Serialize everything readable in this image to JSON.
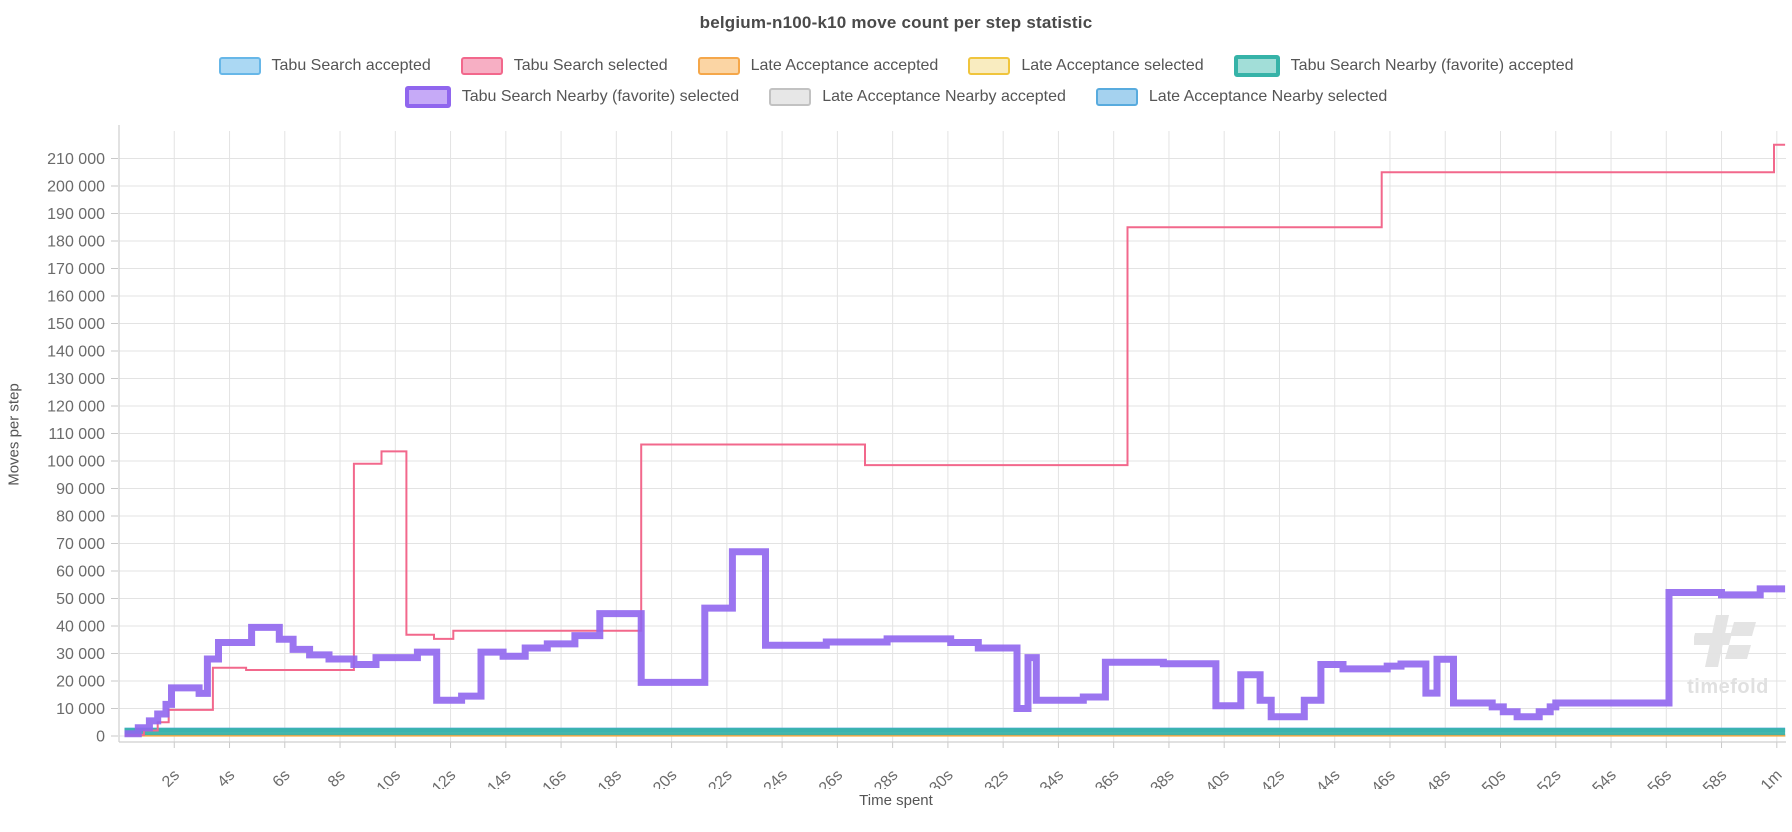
{
  "title": "belgium-n100-k10 move count per step statistic",
  "watermark_text": "timefold",
  "legend_rows": [
    [
      {
        "label": "Tabu Search accepted",
        "border": "#67b7e8",
        "fill": "#abd8f3",
        "thick": false
      },
      {
        "label": "Tabu Search selected",
        "border": "#f2688c",
        "fill": "#f7afc4",
        "thick": false
      },
      {
        "label": "Late Acceptance accepted",
        "border": "#f5a74a",
        "fill": "#fbd5a4",
        "thick": false
      },
      {
        "label": "Late Acceptance selected",
        "border": "#f0c53d",
        "fill": "#f9ecc0",
        "thick": false
      },
      {
        "label": "Tabu Search Nearby (favorite) accepted",
        "border": "#36b3a8",
        "fill": "#a2ded8",
        "thick": true
      }
    ],
    [
      {
        "label": "Tabu Search Nearby (favorite) selected",
        "border": "#9066ee",
        "fill": "#c6aaf7",
        "thick": true
      },
      {
        "label": "Late Acceptance Nearby accepted",
        "border": "#c2c2c2",
        "fill": "#e7e7e7",
        "thick": false
      },
      {
        "label": "Late Acceptance Nearby selected",
        "border": "#58abde",
        "fill": "#a5d2ef",
        "thick": false
      }
    ]
  ],
  "chart_data": {
    "type": "line",
    "style": "step-after",
    "title": "belgium-n100-k10 move count per step statistic",
    "xlabel": "Time spent",
    "ylabel": "Moves per step",
    "ylim": [
      0,
      220000
    ],
    "xlim_seconds": [
      0,
      60.3
    ],
    "y_tick_step": 10000,
    "grid": true,
    "legend_position": "top",
    "y_ticks": [
      "0",
      "10 000",
      "20 000",
      "30 000",
      "40 000",
      "50 000",
      "60 000",
      "70 000",
      "80 000",
      "90 000",
      "100 000",
      "110 000",
      "120 000",
      "130 000",
      "140 000",
      "150 000",
      "160 000",
      "170 000",
      "180 000",
      "190 000",
      "200 000",
      "210 000"
    ],
    "x_ticks": [
      {
        "t": 2,
        "label": "2s"
      },
      {
        "t": 4,
        "label": "4s"
      },
      {
        "t": 6,
        "label": "6s"
      },
      {
        "t": 8,
        "label": "8s"
      },
      {
        "t": 10,
        "label": "10s"
      },
      {
        "t": 12,
        "label": "12s"
      },
      {
        "t": 14,
        "label": "14s"
      },
      {
        "t": 16,
        "label": "16s"
      },
      {
        "t": 18,
        "label": "18s"
      },
      {
        "t": 20,
        "label": "20s"
      },
      {
        "t": 22,
        "label": "22s"
      },
      {
        "t": 24,
        "label": "24s"
      },
      {
        "t": 26,
        "label": "26s"
      },
      {
        "t": 28,
        "label": "28s"
      },
      {
        "t": 30,
        "label": "30s"
      },
      {
        "t": 32,
        "label": "32s"
      },
      {
        "t": 34,
        "label": "34s"
      },
      {
        "t": 36,
        "label": "36s"
      },
      {
        "t": 38,
        "label": "38s"
      },
      {
        "t": 40,
        "label": "40s"
      },
      {
        "t": 42,
        "label": "42s"
      },
      {
        "t": 44,
        "label": "44s"
      },
      {
        "t": 46,
        "label": "46s"
      },
      {
        "t": 48,
        "label": "48s"
      },
      {
        "t": 50,
        "label": "50s"
      },
      {
        "t": 52,
        "label": "52s"
      },
      {
        "t": 54,
        "label": "54s"
      },
      {
        "t": 56,
        "label": "56s"
      },
      {
        "t": 58,
        "label": "58s"
      },
      {
        "t": 60,
        "label": "1m"
      }
    ],
    "series": [
      {
        "id": "late-acceptance-nearby-accepted",
        "name": "Late Acceptance Nearby accepted",
        "color": "#c9c9c9",
        "width": 2,
        "opacity": 1,
        "points": [
          [
            0.2,
            600
          ],
          [
            60.2,
            600
          ]
        ]
      },
      {
        "id": "late-acceptance-selected",
        "name": "Late Acceptance selected",
        "color": "#f0c53d",
        "width": 2,
        "opacity": 1,
        "points": [
          [
            0.2,
            150
          ],
          [
            60.2,
            150
          ]
        ]
      },
      {
        "id": "late-acceptance-accepted",
        "name": "Late Acceptance accepted",
        "color": "#f5a74a",
        "width": 2.5,
        "opacity": 1,
        "points": [
          [
            0.2,
            280
          ],
          [
            60.2,
            280
          ]
        ]
      },
      {
        "id": "tabu-search-accepted",
        "name": "Tabu Search accepted",
        "color": "#67b7e8",
        "width": 2,
        "opacity": 1,
        "points": [
          [
            0.2,
            1700
          ],
          [
            60.2,
            1700
          ]
        ]
      },
      {
        "id": "late-acceptance-nearby-selected",
        "name": "Late Acceptance Nearby selected",
        "color": "#58abde",
        "width": 2.5,
        "opacity": 1,
        "points": [
          [
            0.2,
            2600
          ],
          [
            60.2,
            2600
          ]
        ]
      },
      {
        "id": "tabu-search-nearby-favorite-accepted",
        "name": "Tabu Search Nearby (favorite) accepted",
        "color": "#36b3a8",
        "width": 7,
        "opacity": 0.92,
        "points": [
          [
            0.2,
            1600
          ],
          [
            60.2,
            1600
          ]
        ]
      },
      {
        "id": "tabu-search-selected",
        "name": "Tabu Search selected",
        "color": "#f2688c",
        "width": 2,
        "opacity": 1,
        "points": [
          [
            0.2,
            400
          ],
          [
            0.9,
            2000
          ],
          [
            1.4,
            5000
          ],
          [
            1.8,
            9500
          ],
          [
            3.4,
            24800
          ],
          [
            4.6,
            24000
          ],
          [
            8.5,
            99000
          ],
          [
            9.5,
            103500
          ],
          [
            10.4,
            36800
          ],
          [
            11.4,
            35300
          ],
          [
            12.1,
            38300
          ],
          [
            18.9,
            106000
          ],
          [
            27.0,
            98500
          ],
          [
            36.5,
            185000
          ],
          [
            45.7,
            205000
          ],
          [
            59.9,
            215000
          ]
        ]
      },
      {
        "id": "tabu-search-nearby-favorite-selected",
        "name": "Tabu Search Nearby (favorite) selected",
        "color": "#9066ee",
        "width": 7,
        "opacity": 0.9,
        "points": [
          [
            0.2,
            800
          ],
          [
            0.7,
            3000
          ],
          [
            1.1,
            5500
          ],
          [
            1.4,
            8000
          ],
          [
            1.7,
            11500
          ],
          [
            1.9,
            17500
          ],
          [
            2.9,
            15500
          ],
          [
            3.2,
            28000
          ],
          [
            3.6,
            34000
          ],
          [
            4.8,
            39500
          ],
          [
            5.8,
            35200
          ],
          [
            6.3,
            31500
          ],
          [
            6.9,
            29500
          ],
          [
            7.6,
            28000
          ],
          [
            8.5,
            26000
          ],
          [
            9.3,
            28500
          ],
          [
            10.8,
            30500
          ],
          [
            11.5,
            13000
          ],
          [
            12.4,
            14500
          ],
          [
            13.1,
            30500
          ],
          [
            13.9,
            29000
          ],
          [
            14.7,
            32000
          ],
          [
            15.5,
            33500
          ],
          [
            16.5,
            36500
          ],
          [
            17.4,
            44500
          ],
          [
            18.9,
            19500
          ],
          [
            21.2,
            46500
          ],
          [
            22.2,
            67000
          ],
          [
            23.4,
            33000
          ],
          [
            25.6,
            34200
          ],
          [
            27.8,
            35300
          ],
          [
            30.1,
            34000
          ],
          [
            31.1,
            32000
          ],
          [
            32.5,
            10000
          ],
          [
            32.9,
            28500
          ],
          [
            33.2,
            13000
          ],
          [
            34.9,
            14200
          ],
          [
            35.7,
            26800
          ],
          [
            37.8,
            26300
          ],
          [
            39.7,
            11000
          ],
          [
            40.6,
            22300
          ],
          [
            41.3,
            13000
          ],
          [
            41.7,
            7000
          ],
          [
            42.9,
            13000
          ],
          [
            43.5,
            26000
          ],
          [
            44.3,
            24400
          ],
          [
            45.9,
            25400
          ],
          [
            46.4,
            26200
          ],
          [
            47.3,
            15600
          ],
          [
            47.7,
            27900
          ],
          [
            48.3,
            12000
          ],
          [
            49.7,
            10600
          ],
          [
            50.1,
            8800
          ],
          [
            50.6,
            7000
          ],
          [
            51.4,
            8800
          ],
          [
            51.8,
            10600
          ],
          [
            52.0,
            12000
          ],
          [
            56.1,
            52200
          ],
          [
            58.0,
            51300
          ],
          [
            59.4,
            53500
          ]
        ]
      }
    ]
  }
}
